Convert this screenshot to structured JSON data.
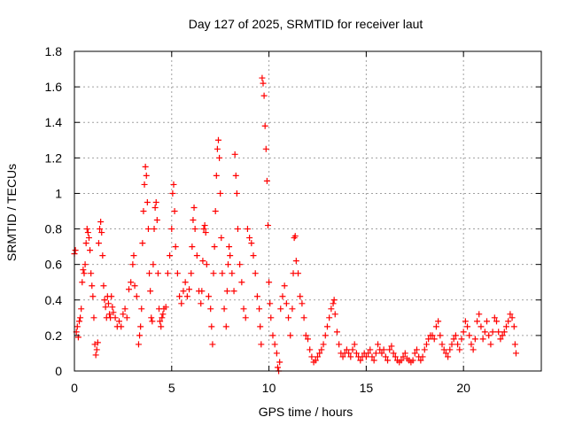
{
  "colors": {
    "series": "#ff0000",
    "grid": "#a0a0a0",
    "axis": "#000000",
    "background": "#ffffff"
  },
  "chart_data": {
    "type": "scatter",
    "title": "Day 127 of 2025, SRMTID for receiver laut",
    "xlabel": "GPS time / hours",
    "ylabel": "SRMTID / TECUs",
    "xlim": [
      0,
      24
    ],
    "ylim": [
      0,
      1.8
    ],
    "xticks": [
      0,
      5,
      10,
      15,
      20
    ],
    "xtick_labels": [
      "0",
      "5",
      "10",
      "15",
      "20"
    ],
    "yticks": [
      0,
      0.2,
      0.4,
      0.6,
      0.8,
      1,
      1.2,
      1.4,
      1.6,
      1.8
    ],
    "ytick_labels": [
      "0",
      "0.2",
      "0.4",
      "0.6",
      "0.8",
      "1",
      "1.2",
      "1.4",
      "1.6",
      "1.8"
    ],
    "grid": true,
    "marker": "+",
    "series": [
      {
        "name": "SRMTID",
        "points": [
          [
            0.0,
            0.66
          ],
          [
            0.05,
            0.68
          ],
          [
            0.1,
            0.22
          ],
          [
            0.15,
            0.25
          ],
          [
            0.2,
            0.19
          ],
          [
            0.25,
            0.28
          ],
          [
            0.3,
            0.3
          ],
          [
            0.35,
            0.35
          ],
          [
            0.4,
            0.5
          ],
          [
            0.45,
            0.57
          ],
          [
            0.5,
            0.55
          ],
          [
            0.55,
            0.6
          ],
          [
            0.6,
            0.72
          ],
          [
            0.65,
            0.8
          ],
          [
            0.7,
            0.78
          ],
          [
            0.75,
            0.75
          ],
          [
            0.8,
            0.68
          ],
          [
            0.85,
            0.55
          ],
          [
            0.9,
            0.48
          ],
          [
            0.95,
            0.42
          ],
          [
            1.0,
            0.3
          ],
          [
            1.05,
            0.15
          ],
          [
            1.1,
            0.09
          ],
          [
            1.15,
            0.12
          ],
          [
            1.2,
            0.16
          ],
          [
            1.25,
            0.72
          ],
          [
            1.3,
            0.8
          ],
          [
            1.35,
            0.84
          ],
          [
            1.4,
            0.78
          ],
          [
            1.45,
            0.65
          ],
          [
            1.5,
            0.48
          ],
          [
            1.55,
            0.4
          ],
          [
            1.6,
            0.36
          ],
          [
            1.65,
            0.3
          ],
          [
            1.7,
            0.42
          ],
          [
            1.75,
            0.38
          ],
          [
            1.8,
            0.32
          ],
          [
            1.85,
            0.3
          ],
          [
            1.9,
            0.42
          ],
          [
            1.95,
            0.36
          ],
          [
            2.0,
            0.33
          ],
          [
            2.1,
            0.3
          ],
          [
            2.2,
            0.25
          ],
          [
            2.3,
            0.28
          ],
          [
            2.4,
            0.25
          ],
          [
            2.5,
            0.32
          ],
          [
            2.6,
            0.35
          ],
          [
            2.7,
            0.3
          ],
          [
            2.8,
            0.46
          ],
          [
            2.9,
            0.5
          ],
          [
            3.0,
            0.6
          ],
          [
            3.05,
            0.65
          ],
          [
            3.1,
            0.48
          ],
          [
            3.2,
            0.42
          ],
          [
            3.3,
            0.15
          ],
          [
            3.35,
            0.2
          ],
          [
            3.4,
            0.25
          ],
          [
            3.45,
            0.35
          ],
          [
            3.5,
            0.72
          ],
          [
            3.55,
            0.9
          ],
          [
            3.6,
            1.05
          ],
          [
            3.65,
            1.15
          ],
          [
            3.7,
            1.1
          ],
          [
            3.75,
            0.95
          ],
          [
            3.8,
            0.8
          ],
          [
            3.85,
            0.55
          ],
          [
            3.9,
            0.45
          ],
          [
            3.95,
            0.3
          ],
          [
            4.0,
            0.28
          ],
          [
            4.05,
            0.6
          ],
          [
            4.1,
            0.8
          ],
          [
            4.15,
            0.92
          ],
          [
            4.2,
            0.95
          ],
          [
            4.25,
            0.85
          ],
          [
            4.3,
            0.55
          ],
          [
            4.35,
            0.35
          ],
          [
            4.4,
            0.28
          ],
          [
            4.45,
            0.25
          ],
          [
            4.5,
            0.3
          ],
          [
            4.55,
            0.32
          ],
          [
            4.6,
            0.35
          ],
          [
            4.7,
            0.36
          ],
          [
            4.8,
            0.55
          ],
          [
            4.9,
            0.65
          ],
          [
            5.0,
            0.8
          ],
          [
            5.05,
            1.0
          ],
          [
            5.1,
            1.05
          ],
          [
            5.15,
            0.9
          ],
          [
            5.2,
            0.7
          ],
          [
            5.3,
            0.55
          ],
          [
            5.4,
            0.42
          ],
          [
            5.5,
            0.38
          ],
          [
            5.6,
            0.45
          ],
          [
            5.7,
            0.5
          ],
          [
            5.8,
            0.42
          ],
          [
            5.9,
            0.46
          ],
          [
            6.0,
            0.55
          ],
          [
            6.05,
            0.7
          ],
          [
            6.1,
            0.85
          ],
          [
            6.15,
            0.92
          ],
          [
            6.2,
            0.8
          ],
          [
            6.3,
            0.65
          ],
          [
            6.4,
            0.45
          ],
          [
            6.5,
            0.38
          ],
          [
            6.55,
            0.45
          ],
          [
            6.6,
            0.62
          ],
          [
            6.65,
            0.8
          ],
          [
            6.7,
            0.82
          ],
          [
            6.75,
            0.78
          ],
          [
            6.8,
            0.6
          ],
          [
            6.9,
            0.42
          ],
          [
            7.0,
            0.35
          ],
          [
            7.05,
            0.25
          ],
          [
            7.1,
            0.15
          ],
          [
            7.15,
            0.55
          ],
          [
            7.2,
            0.7
          ],
          [
            7.25,
            0.9
          ],
          [
            7.3,
            1.1
          ],
          [
            7.35,
            1.25
          ],
          [
            7.4,
            1.3
          ],
          [
            7.45,
            1.2
          ],
          [
            7.5,
            1.0
          ],
          [
            7.55,
            0.75
          ],
          [
            7.6,
            0.55
          ],
          [
            7.7,
            0.35
          ],
          [
            7.8,
            0.25
          ],
          [
            7.85,
            0.45
          ],
          [
            7.9,
            0.6
          ],
          [
            7.95,
            0.7
          ],
          [
            8.0,
            0.65
          ],
          [
            8.1,
            0.55
          ],
          [
            8.2,
            0.45
          ],
          [
            8.25,
            1.22
          ],
          [
            8.3,
            1.1
          ],
          [
            8.35,
            1.0
          ],
          [
            8.4,
            0.8
          ],
          [
            8.5,
            0.6
          ],
          [
            8.6,
            0.5
          ],
          [
            8.7,
            0.35
          ],
          [
            8.8,
            0.3
          ],
          [
            8.9,
            0.8
          ],
          [
            9.0,
            0.75
          ],
          [
            9.1,
            0.72
          ],
          [
            9.2,
            0.65
          ],
          [
            9.3,
            0.55
          ],
          [
            9.4,
            0.42
          ],
          [
            9.5,
            0.35
          ],
          [
            9.55,
            0.25
          ],
          [
            9.6,
            0.15
          ],
          [
            9.65,
            1.65
          ],
          [
            9.7,
            1.62
          ],
          [
            9.75,
            1.55
          ],
          [
            9.8,
            1.38
          ],
          [
            9.85,
            1.25
          ],
          [
            9.9,
            1.07
          ],
          [
            9.95,
            0.82
          ],
          [
            10.0,
            0.5
          ],
          [
            10.05,
            0.38
          ],
          [
            10.1,
            0.3
          ],
          [
            10.2,
            0.2
          ],
          [
            10.3,
            0.15
          ],
          [
            10.4,
            0.1
          ],
          [
            10.45,
            0.02
          ],
          [
            10.5,
            0.0
          ],
          [
            10.55,
            0.05
          ],
          [
            10.6,
            0.35
          ],
          [
            10.7,
            0.42
          ],
          [
            10.8,
            0.48
          ],
          [
            10.9,
            0.38
          ],
          [
            11.0,
            0.3
          ],
          [
            11.1,
            0.2
          ],
          [
            11.2,
            0.35
          ],
          [
            11.25,
            0.55
          ],
          [
            11.3,
            0.75
          ],
          [
            11.35,
            0.76
          ],
          [
            11.4,
            0.62
          ],
          [
            11.5,
            0.55
          ],
          [
            11.6,
            0.42
          ],
          [
            11.7,
            0.38
          ],
          [
            11.8,
            0.3
          ],
          [
            11.9,
            0.2
          ],
          [
            12.0,
            0.18
          ],
          [
            12.1,
            0.12
          ],
          [
            12.2,
            0.08
          ],
          [
            12.3,
            0.05
          ],
          [
            12.4,
            0.06
          ],
          [
            12.5,
            0.08
          ],
          [
            12.6,
            0.1
          ],
          [
            12.7,
            0.12
          ],
          [
            12.8,
            0.15
          ],
          [
            12.9,
            0.2
          ],
          [
            13.0,
            0.25
          ],
          [
            13.1,
            0.3
          ],
          [
            13.2,
            0.35
          ],
          [
            13.3,
            0.38
          ],
          [
            13.35,
            0.4
          ],
          [
            13.4,
            0.32
          ],
          [
            13.5,
            0.22
          ],
          [
            13.6,
            0.15
          ],
          [
            13.7,
            0.1
          ],
          [
            13.8,
            0.08
          ],
          [
            13.9,
            0.1
          ],
          [
            14.0,
            0.12
          ],
          [
            14.1,
            0.1
          ],
          [
            14.2,
            0.08
          ],
          [
            14.3,
            0.12
          ],
          [
            14.4,
            0.15
          ],
          [
            14.5,
            0.1
          ],
          [
            14.6,
            0.08
          ],
          [
            14.7,
            0.06
          ],
          [
            14.8,
            0.08
          ],
          [
            14.9,
            0.1
          ],
          [
            15.0,
            0.08
          ],
          [
            15.1,
            0.1
          ],
          [
            15.2,
            0.12
          ],
          [
            15.3,
            0.08
          ],
          [
            15.4,
            0.06
          ],
          [
            15.5,
            0.1
          ],
          [
            15.6,
            0.15
          ],
          [
            15.7,
            0.12
          ],
          [
            15.8,
            0.1
          ],
          [
            15.9,
            0.12
          ],
          [
            16.0,
            0.08
          ],
          [
            16.1,
            0.06
          ],
          [
            16.2,
            0.12
          ],
          [
            16.3,
            0.14
          ],
          [
            16.4,
            0.1
          ],
          [
            16.5,
            0.08
          ],
          [
            16.6,
            0.06
          ],
          [
            16.7,
            0.05
          ],
          [
            16.8,
            0.06
          ],
          [
            16.9,
            0.08
          ],
          [
            17.0,
            0.1
          ],
          [
            17.1,
            0.07
          ],
          [
            17.2,
            0.06
          ],
          [
            17.3,
            0.05
          ],
          [
            17.4,
            0.06
          ],
          [
            17.5,
            0.1
          ],
          [
            17.6,
            0.12
          ],
          [
            17.7,
            0.08
          ],
          [
            17.8,
            0.06
          ],
          [
            17.9,
            0.08
          ],
          [
            18.0,
            0.12
          ],
          [
            18.1,
            0.15
          ],
          [
            18.2,
            0.18
          ],
          [
            18.3,
            0.2
          ],
          [
            18.4,
            0.2
          ],
          [
            18.5,
            0.18
          ],
          [
            18.6,
            0.25
          ],
          [
            18.7,
            0.28
          ],
          [
            18.8,
            0.2
          ],
          [
            18.9,
            0.15
          ],
          [
            19.0,
            0.12
          ],
          [
            19.1,
            0.1
          ],
          [
            19.2,
            0.08
          ],
          [
            19.3,
            0.12
          ],
          [
            19.4,
            0.15
          ],
          [
            19.5,
            0.18
          ],
          [
            19.6,
            0.2
          ],
          [
            19.7,
            0.15
          ],
          [
            19.8,
            0.12
          ],
          [
            19.9,
            0.18
          ],
          [
            20.0,
            0.22
          ],
          [
            20.1,
            0.28
          ],
          [
            20.2,
            0.25
          ],
          [
            20.3,
            0.2
          ],
          [
            20.4,
            0.15
          ],
          [
            20.5,
            0.12
          ],
          [
            20.6,
            0.18
          ],
          [
            20.7,
            0.28
          ],
          [
            20.8,
            0.32
          ],
          [
            20.9,
            0.25
          ],
          [
            21.0,
            0.18
          ],
          [
            21.1,
            0.22
          ],
          [
            21.2,
            0.28
          ],
          [
            21.3,
            0.2
          ],
          [
            21.4,
            0.15
          ],
          [
            21.5,
            0.22
          ],
          [
            21.6,
            0.3
          ],
          [
            21.7,
            0.28
          ],
          [
            21.8,
            0.22
          ],
          [
            21.9,
            0.18
          ],
          [
            22.0,
            0.2
          ],
          [
            22.1,
            0.22
          ],
          [
            22.2,
            0.25
          ],
          [
            22.3,
            0.28
          ],
          [
            22.4,
            0.32
          ],
          [
            22.5,
            0.3
          ],
          [
            22.6,
            0.25
          ],
          [
            22.65,
            0.15
          ],
          [
            22.7,
            0.1
          ]
        ]
      }
    ]
  }
}
